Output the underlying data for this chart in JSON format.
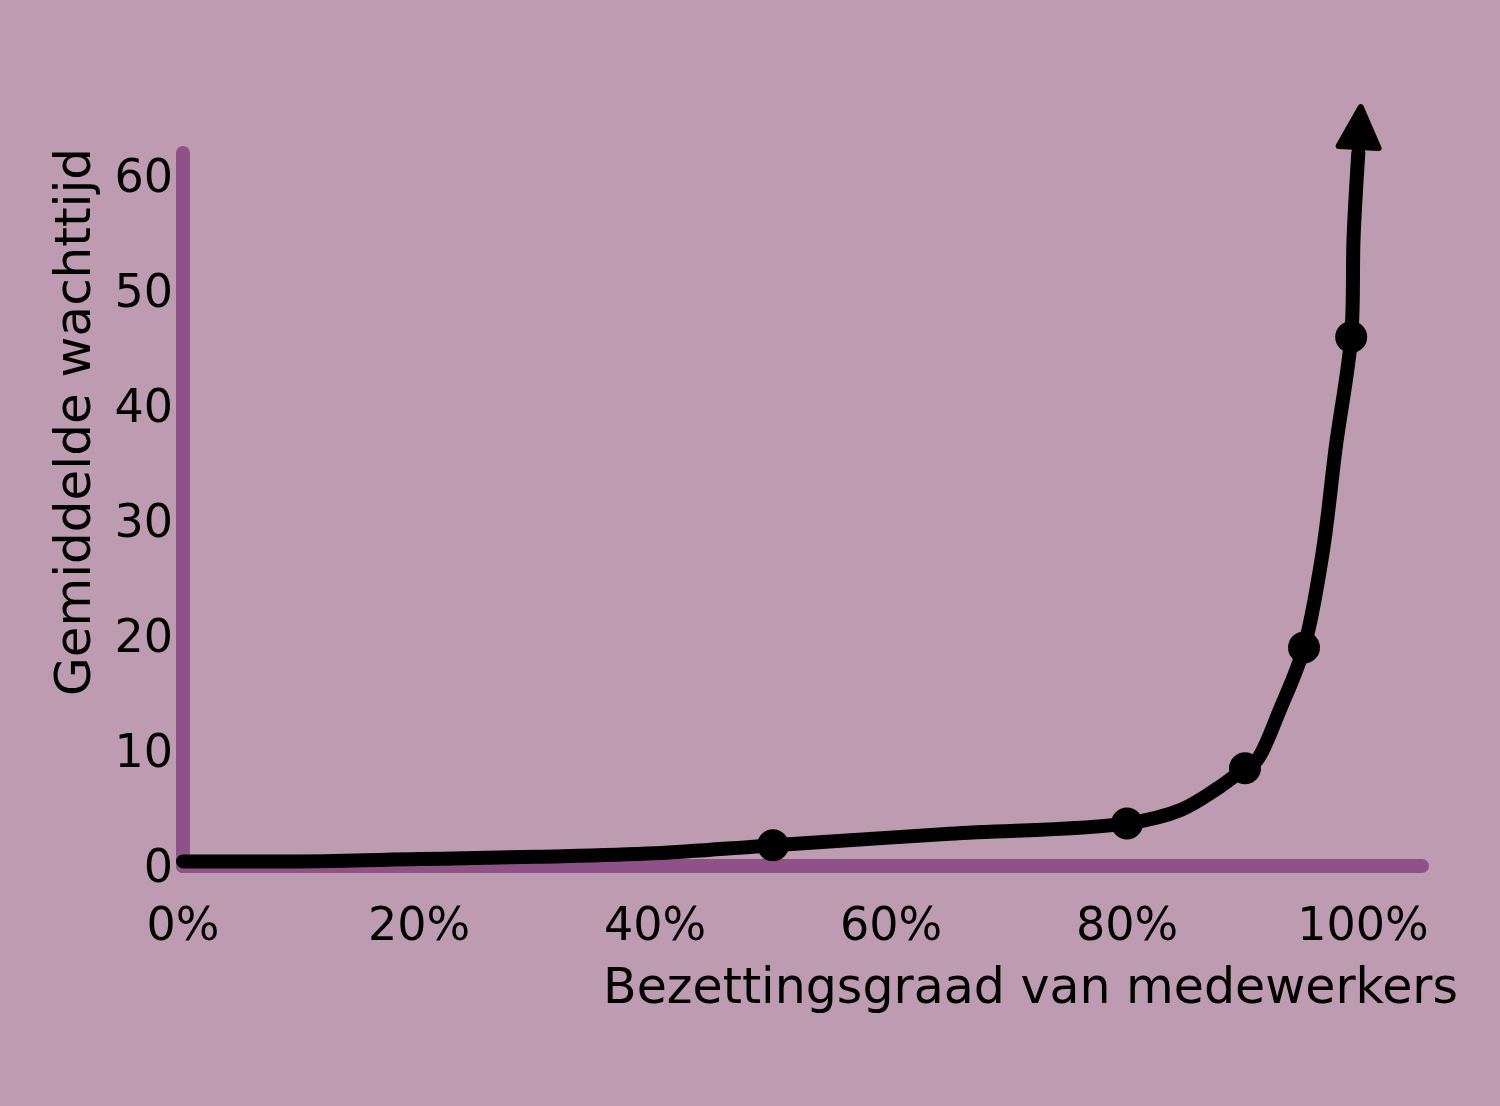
{
  "chart_data": {
    "type": "line",
    "xlabel": "Bezettingsgraad van medewerkers",
    "ylabel": "Gemiddelde wachttijd",
    "xlim": [
      0,
      105
    ],
    "xticks": [
      {
        "value": 0,
        "label": "0%"
      },
      {
        "value": 20,
        "label": "20%"
      },
      {
        "value": 40,
        "label": "40%"
      },
      {
        "value": 60,
        "label": "60%"
      },
      {
        "value": 80,
        "label": "80%"
      },
      {
        "value": 100,
        "label": "100%"
      }
    ],
    "ylim": [
      0,
      62
    ],
    "yticks": [
      0,
      10,
      20,
      30,
      40,
      50,
      60
    ],
    "series": [
      {
        "color": "#000000",
        "marker": "none",
        "x": [
          0,
          10,
          20,
          30,
          40,
          50,
          65,
          80,
          84.6,
          87.6,
          90,
          91,
          93,
          95,
          96.6,
          97.7,
          99,
          99.2,
          99.6
        ],
        "values": [
          0.4,
          0.4,
          0.6,
          0.8,
          1.1,
          1.8,
          2.8,
          3.7,
          4.9,
          6.7,
          8.5,
          9.2,
          13.7,
          19,
          27.4,
          36.5,
          46,
          54.6,
          62
        ]
      },
      {
        "type": "scatter",
        "color": "#000000",
        "marker": "circle",
        "x": [
          50,
          80,
          90,
          95,
          99
        ],
        "values": [
          1.8,
          3.7,
          8.5,
          19,
          46
        ]
      }
    ]
  }
}
